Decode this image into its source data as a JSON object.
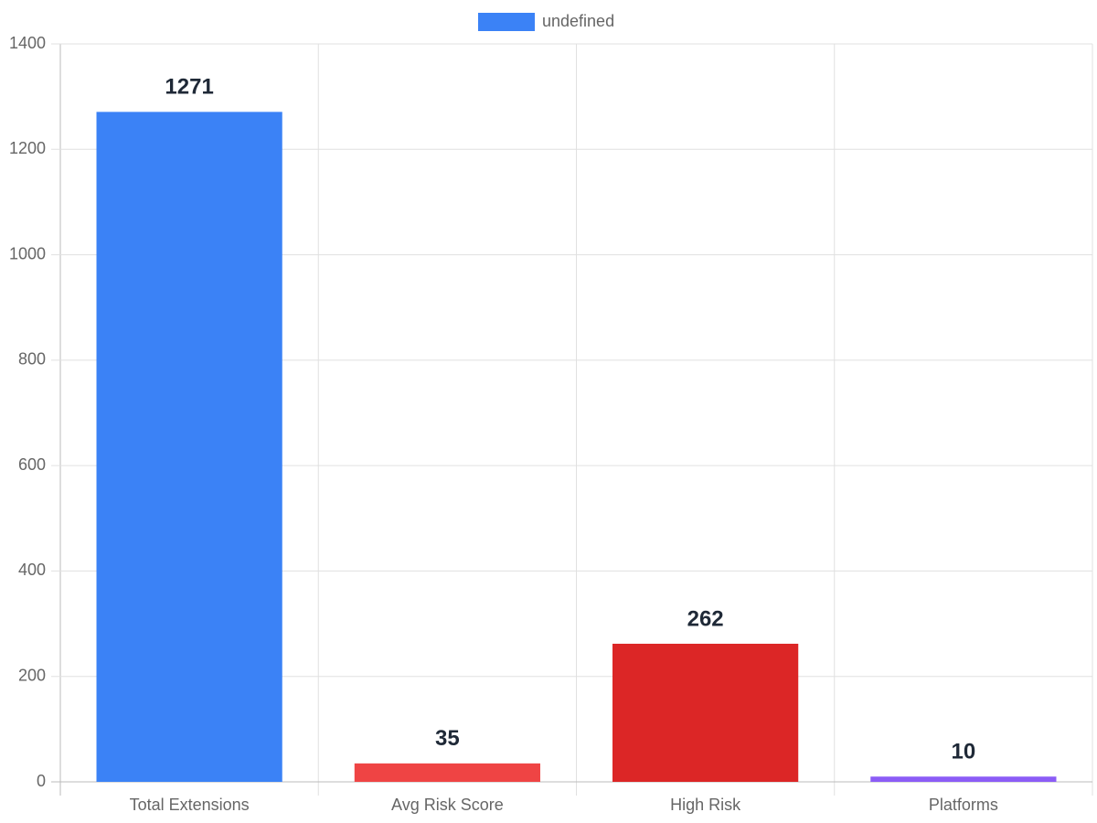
{
  "chart_data": {
    "type": "bar",
    "categories": [
      "Total Extensions",
      "Avg Risk Score",
      "High Risk",
      "Platforms"
    ],
    "series": [
      {
        "name": "undefined",
        "color": "#3b82f6",
        "colors": [
          "#3b82f6",
          "#ef4444",
          "#dc2626",
          "#8b5cf6"
        ],
        "values": [
          1271,
          35,
          262,
          10
        ]
      }
    ],
    "ylim": [
      0,
      1400
    ],
    "yticks": [
      0,
      200,
      400,
      600,
      800,
      1000,
      1200,
      1400
    ],
    "grid": true,
    "legend": "top"
  }
}
